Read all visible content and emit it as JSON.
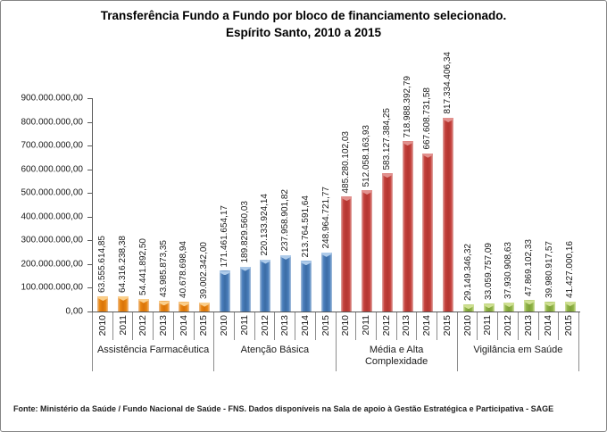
{
  "title": {
    "line1": "Transferência Fundo a Fundo por bloco de financiamento selecionado.",
    "line2": "Espírito Santo, 2010 a 2015"
  },
  "footer": "Fonte: Ministério da Saúde / Fundo Nacional de Saúde - FNS. Dados disponíveis na Sala de apoio à Gestão Estratégica e Participativa - SAGE",
  "chart_data": {
    "type": "bar",
    "title": "Transferência Fundo a Fundo por bloco de financiamento selecionado. Espírito Santo, 2010 a 2015",
    "categories": [
      "2010",
      "2011",
      "2012",
      "2013",
      "2014",
      "2015"
    ],
    "y_axis": {
      "min": 0,
      "max": 900000000,
      "step": 100000000,
      "tick_labels": [
        "900.000.000,00",
        "800.000.000,00",
        "700.000.000,00",
        "600.000.000,00",
        "500.000.000,00",
        "400.000.000,00",
        "300.000.000,00",
        "200.000.000,00",
        "100.000.000,00",
        "0,00"
      ]
    },
    "grid": false,
    "legend": "none",
    "data_labels_rotated": true,
    "series": [
      {
        "name": "Assistência Farmacêutica",
        "colors": {
          "edge": "#F0C294",
          "main": "#E8850F",
          "deep": "#D9730A",
          "cap": "#FBCF8B"
        },
        "values": [
          63555614.85,
          64316238.38,
          54441892.5,
          43985873.35,
          40678698.94,
          39002342.0
        ],
        "labels": [
          "63.555.614,85",
          "64.316.238,38",
          "54.441.892,50",
          "43.985.873,35",
          "40.678.698,94",
          "39.002.342,00"
        ]
      },
      {
        "name": "Atenção Básica",
        "colors": {
          "edge": "#A9C2DE",
          "main": "#4A7EBB",
          "deep": "#3B6CA5",
          "cap": "#AECBEA"
        },
        "values": [
          171461654.17,
          189829560.03,
          220133924.14,
          237958901.82,
          213764591.64,
          248964721.77
        ],
        "labels": [
          "171.461.654,17",
          "189.829.560,03",
          "220.133.924,14",
          "237.958.901,82",
          "213.764.591,64",
          "248.964.721,77"
        ]
      },
      {
        "name": "Média e Alta Complexidade",
        "colors": {
          "edge": "#E3ACA9",
          "main": "#C4413C",
          "deep": "#B33631",
          "cap": "#E2918E"
        },
        "values": [
          485280102.03,
          512058163.93,
          583127384.25,
          718988392.79,
          667608731.58,
          817334406.34
        ],
        "labels": [
          "485.280.102,03",
          "512.058.163,93",
          "583.127.384,25",
          "718.988.392,79",
          "667.608.731,58",
          "817.334.406,34"
        ]
      },
      {
        "name": "Vigilância em Saúde",
        "colors": {
          "edge": "#D3E3A3",
          "main": "#8FB345",
          "deep": "#7FA238",
          "cap": "#CFE092"
        },
        "values": [
          29149346.32,
          33059757.09,
          37930908.63,
          47869102.33,
          39980917.57,
          41427000.16
        ],
        "labels": [
          "29.149.346,32",
          "33.059.757,09",
          "37.930.908,63",
          "47.869.102,33",
          "39.980.917,57",
          "41.427.000,16"
        ]
      }
    ]
  }
}
